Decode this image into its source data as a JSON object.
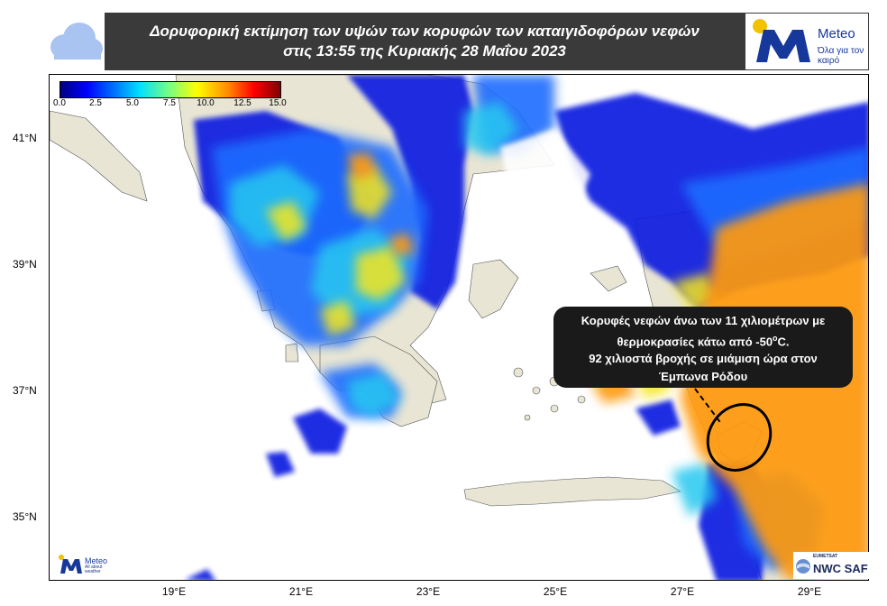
{
  "header": {
    "title_line1": "Δορυφορική εκτίμηση των υψών των κορυφών των καταιγιδοφόρων νεφών",
    "title_line2": "στις 13:55 της Κυριακής 28 Μαΐου 2023"
  },
  "brand": {
    "name": "Meteo",
    "tagline": "Όλα για τον καιρό",
    "small_name": "Meteo",
    "small_tagline": "All about weather",
    "icon": "cloud-icon",
    "color": "#17389b",
    "accent": "#f2c200"
  },
  "colorbar": {
    "ticks": [
      "0.0",
      "2.5",
      "5.0",
      "7.5",
      "10.0",
      "12.5",
      "15.0"
    ]
  },
  "axes": {
    "lat_ticks": [
      "41°N",
      "39°N",
      "37°N",
      "35°N"
    ],
    "lon_ticks": [
      "19°E",
      "21°E",
      "23°E",
      "25°E",
      "27°E",
      "29°E"
    ]
  },
  "callout": {
    "line1": "Κορυφές νεφών άνω των 11 χιλιομέτρων με",
    "line2_pre": "θερμοκρασίες κάτω από -50",
    "line2_sup": "ο",
    "line2_post": "C.",
    "line3": "92 χιλιοστά βροχής σε μιάμιση ώρα στον",
    "line4": "Έμπωνα Ρόδου"
  },
  "credit": {
    "org_small": "EUMETSAT",
    "org_main": "NWC SAF"
  },
  "colors": {
    "land": "#e8e5d4",
    "sea": "#ffffff",
    "deep_blue": "#0a1ee0",
    "mid_blue": "#1e6cff",
    "cyan": "#25c8f0",
    "yellow": "#f5e61e",
    "orange": "#ff9a10",
    "header_bg": "#3a3a3a"
  }
}
